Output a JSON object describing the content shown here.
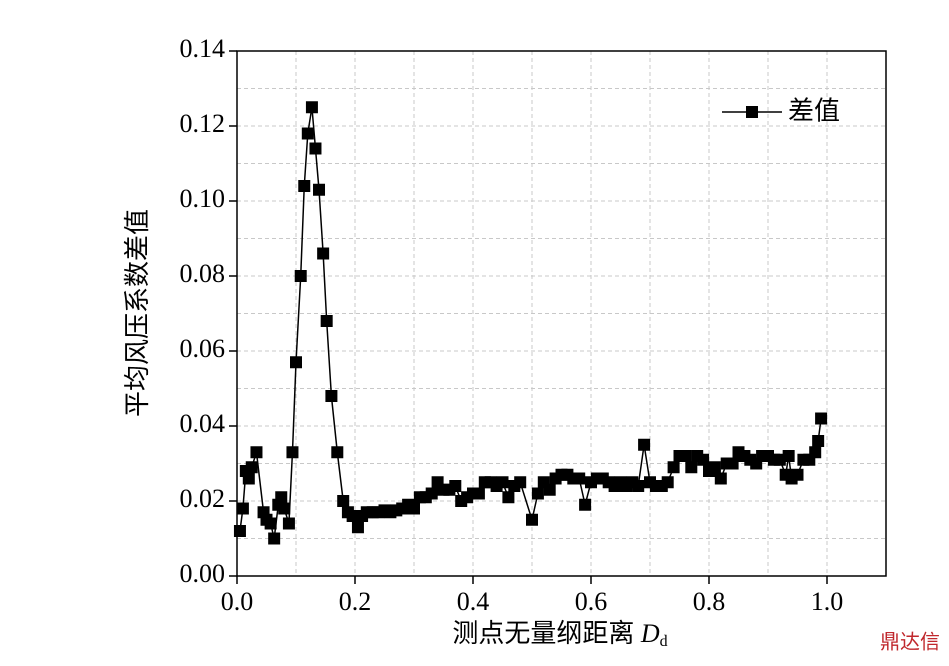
{
  "chart_data": {
    "type": "line",
    "ylabel": "平均风压系数差值",
    "xlabel": "测点无量纲距离 ",
    "xlabel_symbol": "D",
    "xlabel_subscript": "d",
    "watermark": "鼎达信",
    "legend": "top-right",
    "grid": true,
    "xlim": [
      0,
      1.1
    ],
    "ylim": [
      0,
      0.14
    ],
    "xticks": [
      {
        "value": 0,
        "label": "0.0"
      },
      0.2,
      0.4,
      0.6,
      0.8,
      {
        "value": 1,
        "label": "1.0"
      }
    ],
    "xgridticks": [
      0.1,
      0.2,
      0.3,
      0.4,
      0.5,
      0.6,
      0.7,
      0.8,
      0.9,
      1.0
    ],
    "yticks": [
      {
        "value": 0,
        "label": "0.00"
      },
      {
        "value": 0.02,
        "label": "0.02"
      },
      {
        "value": 0.04,
        "label": "0.04"
      },
      {
        "value": 0.06,
        "label": "0.06"
      },
      {
        "value": 0.08,
        "label": "0.08"
      },
      {
        "value": 0.1,
        "label": "0.10"
      },
      {
        "value": 0.12,
        "label": "0.12"
      },
      {
        "value": 0.14,
        "label": "0.14"
      }
    ],
    "ygridticks": [
      0.01,
      0.02,
      0.03,
      0.04,
      0.05,
      0.06,
      0.07,
      0.08,
      0.09,
      0.1,
      0.11,
      0.12,
      0.13
    ],
    "series": [
      {
        "name": "差值",
        "color": "#000000",
        "x": [
          0.005,
          0.01,
          0.015,
          0.02,
          0.025,
          0.033,
          0.045,
          0.05,
          0.057,
          0.063,
          0.07,
          0.075,
          0.08,
          0.088,
          0.094,
          0.1,
          0.108,
          0.114,
          0.12,
          0.127,
          0.133,
          0.139,
          0.146,
          0.152,
          0.16,
          0.17,
          0.18,
          0.188,
          0.196,
          0.205,
          0.212,
          0.22,
          0.23,
          0.24,
          0.25,
          0.26,
          0.27,
          0.28,
          0.29,
          0.3,
          0.31,
          0.32,
          0.33,
          0.34,
          0.35,
          0.36,
          0.37,
          0.38,
          0.39,
          0.4,
          0.41,
          0.42,
          0.43,
          0.44,
          0.45,
          0.46,
          0.47,
          0.48,
          0.5,
          0.51,
          0.52,
          0.53,
          0.54,
          0.55,
          0.56,
          0.57,
          0.58,
          0.59,
          0.6,
          0.61,
          0.62,
          0.63,
          0.64,
          0.65,
          0.66,
          0.67,
          0.68,
          0.69,
          0.7,
          0.71,
          0.72,
          0.73,
          0.74,
          0.75,
          0.76,
          0.77,
          0.78,
          0.79,
          0.8,
          0.81,
          0.82,
          0.83,
          0.84,
          0.85,
          0.86,
          0.87,
          0.88,
          0.89,
          0.9,
          0.91,
          0.92,
          0.93,
          0.935,
          0.94,
          0.95,
          0.96,
          0.97,
          0.98,
          0.985,
          0.99
        ],
        "values": [
          0.012,
          0.018,
          0.028,
          0.026,
          0.029,
          0.033,
          0.017,
          0.015,
          0.014,
          0.01,
          0.019,
          0.021,
          0.018,
          0.014,
          0.033,
          0.057,
          0.08,
          0.104,
          0.118,
          0.125,
          0.114,
          0.103,
          0.086,
          0.068,
          0.048,
          0.033,
          0.02,
          0.017,
          0.016,
          0.013,
          0.016,
          0.017,
          0.017,
          0.017,
          0.0175,
          0.017,
          0.0175,
          0.018,
          0.019,
          0.018,
          0.021,
          0.021,
          0.022,
          0.025,
          0.023,
          0.023,
          0.024,
          0.02,
          0.021,
          0.022,
          0.022,
          0.025,
          0.025,
          0.024,
          0.025,
          0.021,
          0.024,
          0.025,
          0.015,
          0.022,
          0.025,
          0.023,
          0.026,
          0.027,
          0.027,
          0.026,
          0.026,
          0.019,
          0.025,
          0.026,
          0.026,
          0.025,
          0.024,
          0.025,
          0.024,
          0.025,
          0.024,
          0.035,
          0.025,
          0.024,
          0.024,
          0.025,
          0.029,
          0.032,
          0.032,
          0.029,
          0.032,
          0.031,
          0.028,
          0.029,
          0.026,
          0.03,
          0.03,
          0.033,
          0.032,
          0.031,
          0.03,
          0.032,
          0.032,
          0.031,
          0.031,
          0.027,
          0.032,
          0.026,
          0.027,
          0.031,
          0.031,
          0.033,
          0.036,
          0.042
        ]
      }
    ]
  }
}
